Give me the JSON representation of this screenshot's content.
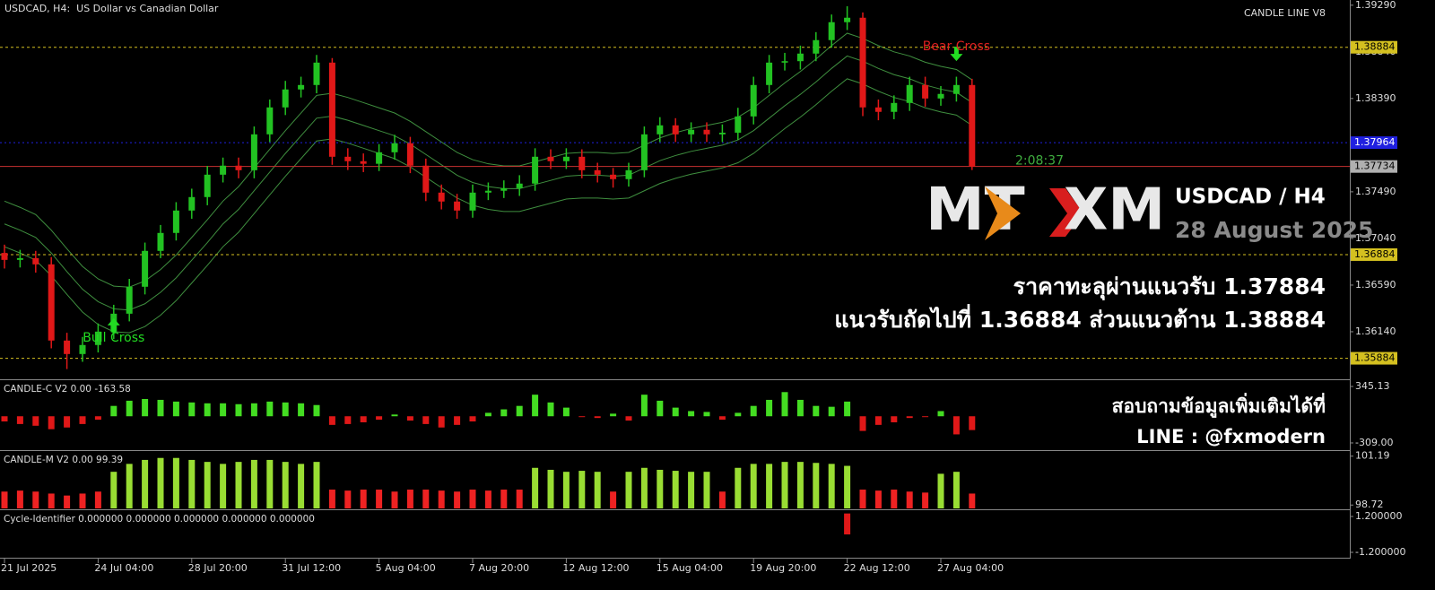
{
  "chart_data": [
    {
      "type": "candlestick",
      "title": "USDCAD, H4:  US Dollar vs Canadian Dollar",
      "indicator": "CANDLE LINE V8",
      "categories": [
        "21 Jul 2025",
        null,
        null,
        null,
        null,
        null,
        "24 Jul 04:00",
        null,
        null,
        null,
        null,
        null,
        "28 Jul 20:00",
        null,
        null,
        null,
        null,
        null,
        "31 Jul 12:00",
        null,
        null,
        null,
        null,
        null,
        "5 Aug 04:00",
        null,
        null,
        null,
        null,
        null,
        "7 Aug 20:00",
        null,
        null,
        null,
        null,
        null,
        "12 Aug 12:00",
        null,
        null,
        null,
        null,
        null,
        "15 Aug 04:00",
        null,
        null,
        null,
        null,
        null,
        "19 Aug 20:00",
        null,
        null,
        null,
        null,
        null,
        "22 Aug 12:00",
        null,
        null,
        null,
        null,
        null,
        "27 Aug 04:00",
        null,
        null
      ],
      "open": [
        1.369,
        1.36833,
        1.3685,
        1.3679,
        1.36055,
        1.35925,
        1.36012,
        1.36141,
        1.36314,
        1.36574,
        1.3692,
        1.37093,
        1.37309,
        1.37439,
        1.37655,
        1.37742,
        1.37698,
        1.38044,
        1.38304,
        1.38477,
        1.3852,
        1.38736,
        1.37828,
        1.37785,
        1.3776,
        1.37871,
        1.37958,
        1.37742,
        1.37482,
        1.37396,
        1.37309,
        1.37482,
        1.375,
        1.37525,
        1.37569,
        1.37828,
        1.37785,
        1.37828,
        1.37698,
        1.37655,
        1.37612,
        1.37698,
        1.38044,
        1.38131,
        1.38044,
        1.38088,
        1.38044,
        1.3806,
        1.38217,
        1.3852,
        1.38736,
        1.3875,
        1.38823,
        1.38953,
        1.39126,
        1.39169,
        1.38304,
        1.38261,
        1.38347,
        1.3852,
        1.3839,
        1.38434,
        1.3852
      ],
      "high": [
        1.3698,
        1.3693,
        1.3692,
        1.3686,
        1.3613,
        1.3609,
        1.3622,
        1.364,
        1.3665,
        1.37,
        1.3717,
        1.3739,
        1.3752,
        1.3774,
        1.3782,
        1.3782,
        1.3812,
        1.3838,
        1.3856,
        1.386,
        1.3881,
        1.3878,
        1.3791,
        1.3786,
        1.3795,
        1.3804,
        1.3802,
        1.3781,
        1.3756,
        1.3747,
        1.3756,
        1.3758,
        1.376,
        1.3765,
        1.3791,
        1.379,
        1.3791,
        1.379,
        1.3777,
        1.3772,
        1.3777,
        1.3812,
        1.3821,
        1.382,
        1.3816,
        1.3816,
        1.3814,
        1.383,
        1.386,
        1.3881,
        1.3883,
        1.389,
        1.3903,
        1.392,
        1.3928,
        1.3922,
        1.3838,
        1.3842,
        1.386,
        1.386,
        1.3851,
        1.386,
        1.3858
      ],
      "low": [
        1.3675,
        1.3676,
        1.3671,
        1.3598,
        1.3578,
        1.3585,
        1.3594,
        1.3607,
        1.3624,
        1.365,
        1.3685,
        1.3702,
        1.3723,
        1.3736,
        1.3758,
        1.3762,
        1.3762,
        1.3797,
        1.3823,
        1.384,
        1.3844,
        1.3775,
        1.377,
        1.3768,
        1.3769,
        1.378,
        1.3767,
        1.374,
        1.3732,
        1.3723,
        1.3724,
        1.3741,
        1.3743,
        1.3745,
        1.375,
        1.3771,
        1.3771,
        1.3762,
        1.3758,
        1.3753,
        1.3754,
        1.3763,
        1.3797,
        1.3797,
        1.3797,
        1.3797,
        1.3797,
        1.3799,
        1.3814,
        1.3844,
        1.3866,
        1.3867,
        1.3875,
        1.3888,
        1.3905,
        1.3822,
        1.3818,
        1.3819,
        1.3827,
        1.3831,
        1.3832,
        1.3836,
        1.377
      ],
      "close": [
        1.36833,
        1.3685,
        1.3679,
        1.36055,
        1.35925,
        1.36012,
        1.36141,
        1.36314,
        1.36574,
        1.3692,
        1.37093,
        1.37309,
        1.37439,
        1.37655,
        1.37742,
        1.37698,
        1.38044,
        1.38304,
        1.38477,
        1.3852,
        1.38736,
        1.37828,
        1.37785,
        1.3776,
        1.37871,
        1.37958,
        1.37742,
        1.37482,
        1.37396,
        1.37309,
        1.37482,
        1.375,
        1.37525,
        1.37569,
        1.37828,
        1.37785,
        1.37828,
        1.37698,
        1.37655,
        1.37612,
        1.37698,
        1.38044,
        1.38131,
        1.38044,
        1.38088,
        1.38044,
        1.3806,
        1.38217,
        1.3852,
        1.38736,
        1.3875,
        1.38823,
        1.38953,
        1.39126,
        1.39169,
        1.38304,
        1.38261,
        1.38347,
        1.3852,
        1.3839,
        1.38434,
        1.3852,
        1.37734
      ],
      "up_color": "#22c222",
      "down_color": "#e01818",
      "bands": {
        "color": "#3f8f3f",
        "upper": [
          1.374,
          1.3734,
          1.3727,
          1.3712,
          1.3694,
          1.3677,
          1.3665,
          1.3658,
          1.3657,
          1.3663,
          1.3674,
          1.3688,
          1.3705,
          1.3722,
          1.374,
          1.3754,
          1.3772,
          1.379,
          1.3808,
          1.3825,
          1.3842,
          1.3844,
          1.384,
          1.3835,
          1.383,
          1.3825,
          1.3817,
          1.3807,
          1.3797,
          1.3787,
          1.378,
          1.3776,
          1.3774,
          1.3774,
          1.3778,
          1.3782,
          1.3786,
          1.3787,
          1.3787,
          1.3786,
          1.3787,
          1.3794,
          1.3801,
          1.3806,
          1.381,
          1.3813,
          1.3816,
          1.3821,
          1.383,
          1.3842,
          1.3854,
          1.3865,
          1.3877,
          1.389,
          1.3902,
          1.3897,
          1.389,
          1.3884,
          1.388,
          1.3874,
          1.387,
          1.3867,
          1.3857
        ],
        "middle": [
          1.3718,
          1.3712,
          1.3705,
          1.369,
          1.3672,
          1.3655,
          1.3643,
          1.3636,
          1.3635,
          1.3641,
          1.3652,
          1.3666,
          1.3683,
          1.37,
          1.3718,
          1.3732,
          1.375,
          1.3768,
          1.3786,
          1.3803,
          1.382,
          1.3822,
          1.3818,
          1.3813,
          1.3808,
          1.3803,
          1.3795,
          1.3785,
          1.3775,
          1.3765,
          1.3758,
          1.3754,
          1.3752,
          1.3752,
          1.3756,
          1.376,
          1.3764,
          1.3765,
          1.3765,
          1.3764,
          1.3765,
          1.3772,
          1.3779,
          1.3784,
          1.3788,
          1.3791,
          1.3794,
          1.3799,
          1.3808,
          1.382,
          1.3832,
          1.3843,
          1.3855,
          1.3868,
          1.388,
          1.3875,
          1.3868,
          1.3862,
          1.3858,
          1.3852,
          1.3848,
          1.3845,
          1.3835
        ],
        "lower": [
          1.3696,
          1.369,
          1.3683,
          1.3668,
          1.365,
          1.3633,
          1.3621,
          1.3614,
          1.3613,
          1.3619,
          1.363,
          1.3644,
          1.3661,
          1.3678,
          1.3696,
          1.371,
          1.3728,
          1.3746,
          1.3764,
          1.3781,
          1.3798,
          1.38,
          1.3796,
          1.3791,
          1.3786,
          1.3781,
          1.3773,
          1.3763,
          1.3753,
          1.3743,
          1.3736,
          1.3732,
          1.373,
          1.373,
          1.3734,
          1.3738,
          1.3742,
          1.3743,
          1.3743,
          1.3742,
          1.3743,
          1.375,
          1.3757,
          1.3762,
          1.3766,
          1.3769,
          1.3772,
          1.3777,
          1.3786,
          1.3798,
          1.381,
          1.3821,
          1.3833,
          1.3846,
          1.3858,
          1.3853,
          1.3846,
          1.384,
          1.3836,
          1.383,
          1.3826,
          1.3823,
          1.3813
        ]
      },
      "ylim": [
        1.3569,
        1.3934
      ],
      "yticks": [
        {
          "value": 1.3929,
          "label": "1.39290"
        },
        {
          "value": 1.3884,
          "label": "1.38840"
        },
        {
          "value": 1.3839,
          "label": "1.38390"
        },
        {
          "value": 1.3794,
          "label": "1.37940"
        },
        {
          "value": 1.3749,
          "label": "1.37490"
        },
        {
          "value": 1.3704,
          "label": "1.37040"
        },
        {
          "value": 1.3659,
          "label": "1.36590"
        },
        {
          "value": 1.3614,
          "label": "1.36140"
        }
      ],
      "levels": [
        {
          "value": 1.38884,
          "label": "1.38884",
          "color": "#d4c020"
        },
        {
          "value": 1.36884,
          "label": "1.36884",
          "color": "#d4c020"
        },
        {
          "value": 1.35884,
          "label": "1.35884",
          "color": "#d4c020"
        }
      ],
      "ask": {
        "value": 1.37964,
        "label": "1.37964",
        "color": "#2020e0"
      },
      "current": {
        "value": 1.37734,
        "label": "1.37734",
        "color": "#c83030"
      },
      "timer": "2:08:37",
      "annotations": [
        {
          "text": "Bull Cross",
          "x": 7,
          "y": 1.3615,
          "color": "#22dd22",
          "arrow": "up",
          "arrow_color": "#22dd22"
        },
        {
          "text": "Bear Cross",
          "x": 61,
          "y": 1.3882,
          "color": "#e02020",
          "arrow": "down",
          "arrow_color": "#22dd22"
        }
      ]
    },
    {
      "type": "bar",
      "title": "CANDLE-C V2 0.00 -163.58",
      "values": [
        -60,
        -90,
        -110,
        -150,
        -130,
        -90,
        -40,
        120,
        180,
        200,
        190,
        170,
        160,
        150,
        150,
        140,
        150,
        170,
        160,
        150,
        130,
        -100,
        -90,
        -70,
        -40,
        20,
        -50,
        -90,
        -130,
        -100,
        -60,
        40,
        80,
        120,
        250,
        160,
        100,
        -10,
        -20,
        30,
        -50,
        250,
        180,
        100,
        60,
        50,
        -40,
        40,
        120,
        190,
        280,
        190,
        120,
        110,
        170,
        -170,
        -100,
        -70,
        -20,
        -10,
        60,
        -210,
        -160
      ],
      "up_color": "#44dd22",
      "down_color": "#e01818",
      "ylim": [
        -382,
        418
      ],
      "yticks": [
        345.13,
        {
          "value": -309,
          "label": "-309.00"
        }
      ]
    },
    {
      "type": "bar",
      "title": "CANDLE-M V2 0.00 99.39",
      "values": [
        99.4,
        99.45,
        99.4,
        99.3,
        99.2,
        99.3,
        99.4,
        100.4,
        100.8,
        101,
        101.1,
        101.1,
        101,
        100.9,
        100.8,
        100.9,
        101,
        101,
        100.9,
        100.8,
        100.9,
        99.5,
        99.45,
        99.5,
        99.5,
        99.4,
        99.5,
        99.5,
        99.45,
        99.4,
        99.5,
        99.45,
        99.5,
        99.5,
        100.6,
        100.5,
        100.4,
        100.45,
        100.4,
        99.4,
        100.4,
        100.6,
        100.5,
        100.45,
        100.4,
        100.4,
        99.4,
        100.6,
        100.8,
        100.8,
        100.9,
        100.9,
        100.85,
        100.8,
        100.7,
        99.5,
        99.45,
        99.5,
        99.4,
        99.35,
        100.3,
        100.4,
        99.3
      ],
      "colors": [
        "#e22",
        "#e22",
        "#e22",
        "#e22",
        "#e22",
        "#e22",
        "#e22",
        "#9d3",
        "#9d3",
        "#9d3",
        "#9d3",
        "#9d3",
        "#9d3",
        "#9d3",
        "#9d3",
        "#9d3",
        "#9d3",
        "#9d3",
        "#9d3",
        "#9d3",
        "#9d3",
        "#e22",
        "#e22",
        "#e22",
        "#e22",
        "#e22",
        "#e22",
        "#e22",
        "#e22",
        "#e22",
        "#e22",
        "#e22",
        "#e22",
        "#e22",
        "#9d3",
        "#9d3",
        "#9d3",
        "#9d3",
        "#9d3",
        "#e22",
        "#9d3",
        "#9d3",
        "#9d3",
        "#9d3",
        "#9d3",
        "#9d3",
        "#e22",
        "#9d3",
        "#9d3",
        "#9d3",
        "#9d3",
        "#9d3",
        "#9d3",
        "#9d3",
        "#9d3",
        "#e22",
        "#e22",
        "#e22",
        "#e22",
        "#e22",
        "#9d3",
        "#9d3",
        "#e22"
      ],
      "ylim": [
        98.55,
        101.45
      ],
      "yticks": [
        101.19,
        98.72
      ]
    },
    {
      "type": "bar",
      "title": "Cycle-Identifier 0.000000 0.000000 0.000000 0.000000 0.000000",
      "values": [
        0,
        0,
        0,
        0,
        0,
        0,
        0,
        0,
        0,
        0,
        0,
        0,
        0,
        0,
        0,
        0,
        0,
        0,
        0,
        0,
        0,
        0,
        0,
        0,
        0,
        0,
        0,
        0,
        0,
        0,
        0,
        0,
        0,
        0,
        0,
        0,
        0,
        0,
        0,
        0,
        0,
        0,
        0,
        0,
        0,
        0,
        0,
        0,
        0,
        0,
        0,
        0,
        0,
        0,
        1.4,
        0,
        0,
        0,
        0,
        0,
        0,
        0,
        0
      ],
      "color": "#e01818",
      "ylim": [
        -1.56,
        1.62
      ],
      "yticks": [
        {
          "value": 1.2,
          "label": "1.200000"
        },
        {
          "value": -1.2,
          "label": "-1.200000"
        }
      ]
    }
  ],
  "overlay": {
    "logo_left": "MT",
    "logo_right": "XM",
    "symbol": "USDCAD / H4",
    "date": "28 August 2025",
    "lines": [
      "ราคาทะลุผ่านแนวรับ 1.37884",
      "แนวรับถัดไปที่ 1.36884 ส่วนแนวต้าน 1.38884"
    ],
    "contact": [
      "สอบถามข้อมูลเพิ่มเติมได้ที่",
      "LINE : @fxmodern"
    ]
  }
}
